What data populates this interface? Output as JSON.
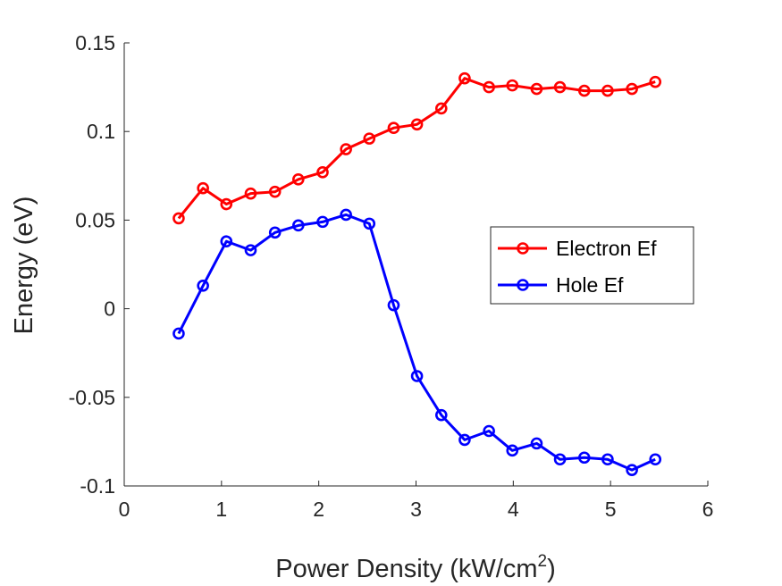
{
  "chart_data": {
    "type": "line",
    "xlabel": "Power Density (kW/cm",
    "xlabel_superscript": "2",
    "xlabel_suffix": ")",
    "ylabel": "Energy (eV)",
    "xlim": [
      0,
      6
    ],
    "ylim": [
      -0.1,
      0.15
    ],
    "xticks": [
      0,
      1,
      2,
      3,
      4,
      5,
      6
    ],
    "xtick_labels": [
      "0",
      "1",
      "2",
      "3",
      "4",
      "5",
      "6"
    ],
    "yticks": [
      -0.1,
      -0.05,
      0,
      0.05,
      0.1,
      0.15
    ],
    "ytick_labels": [
      "-0.1",
      "-0.05",
      "0",
      "0.05",
      "0.1",
      "0.15"
    ],
    "grid": false,
    "legend_position": "right",
    "x": [
      0.56,
      0.81,
      1.05,
      1.3,
      1.55,
      1.79,
      2.04,
      2.28,
      2.52,
      2.77,
      3.01,
      3.26,
      3.5,
      3.75,
      3.99,
      4.24,
      4.48,
      4.73,
      4.97,
      5.22,
      5.46
    ],
    "series": [
      {
        "name": "Electron Ef",
        "color": "#ff0000",
        "marker": "circle",
        "values": [
          0.051,
          0.068,
          0.059,
          0.065,
          0.066,
          0.073,
          0.077,
          0.09,
          0.096,
          0.102,
          0.104,
          0.113,
          0.13,
          0.125,
          0.126,
          0.124,
          0.125,
          0.123,
          0.123,
          0.124,
          0.128
        ]
      },
      {
        "name": "Hole Ef",
        "color": "#0000ff",
        "marker": "circle",
        "values": [
          -0.014,
          0.013,
          0.038,
          0.033,
          0.043,
          0.047,
          0.049,
          0.053,
          0.048,
          0.002,
          -0.038,
          -0.06,
          -0.074,
          -0.069,
          -0.08,
          -0.076,
          -0.085,
          -0.084,
          -0.085,
          -0.091,
          -0.085
        ]
      }
    ]
  }
}
